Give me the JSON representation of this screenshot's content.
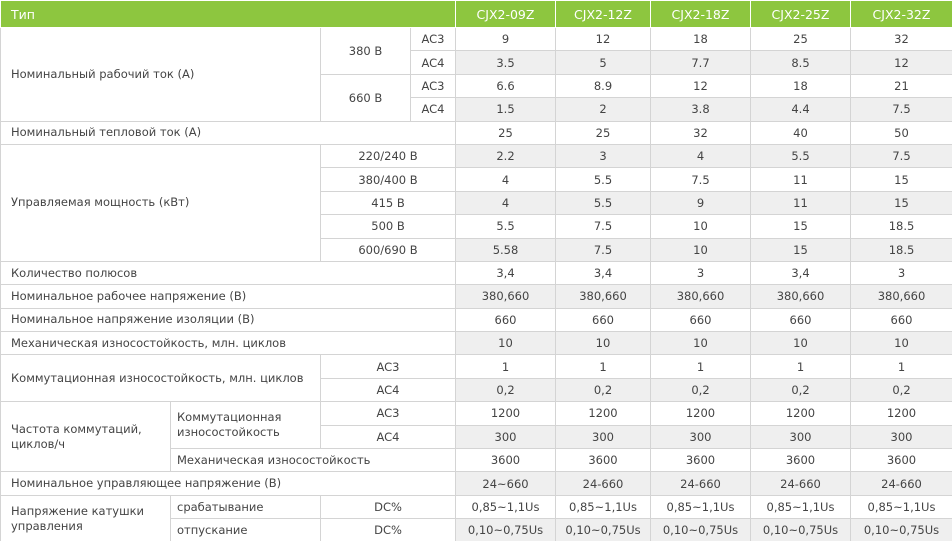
{
  "table": {
    "header": [
      "Тип",
      "CJX2-09Z",
      "CJX2-12Z",
      "CJX2-18Z",
      "CJX2-25Z",
      "CJX2-32Z"
    ],
    "rows": [
      [
        "Номинальный рабочий ток (А)",
        "380 В",
        "AC3",
        9,
        12,
        18,
        25,
        32
      ],
      [
        "AC4",
        3.5,
        5,
        7.7,
        8.5,
        12
      ],
      [
        "660 В",
        "AC3",
        6.6,
        8.9,
        12,
        18,
        21
      ],
      [
        "AC4",
        1.5,
        2,
        3.8,
        4.4,
        7.5
      ],
      [
        "Номинальный тепловой ток (А)",
        25,
        25,
        32,
        40,
        50
      ],
      [
        "Управляемая мощность (кВт)",
        "220/240 В",
        2.2,
        3,
        4,
        5.5,
        7.5
      ],
      [
        "380/400 В",
        4,
        5.5,
        7.5,
        11,
        15
      ],
      [
        "415 В",
        4,
        5.5,
        9,
        11,
        15
      ],
      [
        "500 В",
        5.5,
        7.5,
        10,
        15,
        18.5
      ],
      [
        "600/690 В",
        5.58,
        7.5,
        10,
        15,
        18.5
      ],
      [
        "Количество полюсов",
        "3,4",
        "3,4",
        3,
        "3,4",
        3
      ],
      [
        "Номинальное рабочее напряжение (В)",
        "380,660",
        "380,660",
        "380,660",
        "380,660",
        "380,660"
      ],
      [
        "Номинальное напряжение изоляции (В)",
        660,
        660,
        660,
        660,
        660
      ],
      [
        "Механическая износостойкость, млн. циклов",
        10,
        10,
        10,
        10,
        10
      ],
      [
        "Коммутационная износостойкость, млн. циклов",
        "AC3",
        1,
        1,
        1,
        1,
        1
      ],
      [
        "AC4",
        "0,2",
        "0,2",
        "0,2",
        "0,2",
        "0,2"
      ],
      [
        "Частота коммутаций, циклов/ч",
        "Коммутационная износостойкость",
        "AC3",
        1200,
        1200,
        1200,
        1200,
        1200
      ],
      [
        "AC4",
        300,
        300,
        300,
        300,
        300
      ],
      [
        "Механическая износостойкость",
        3600,
        3600,
        3600,
        3600,
        3600
      ],
      [
        "Номинальное управляющее напряжение (В)",
        "24~660",
        "24-660",
        "24-660",
        "24-660",
        "24-660"
      ],
      [
        "Напряжение катушки управления",
        "срабатывание",
        "DC%",
        "0,85~1,1Us",
        "0,85~1,1Us",
        "0,85~1,1Us",
        "0,85~1,1Us",
        "0,85~1,1Us"
      ],
      [
        "отпускание",
        "DC%",
        "0,10~0,75Us",
        "0,10~0,75Us",
        "0,10~0,75Us",
        "0,10~0,75Us",
        "0,10~0,75Us"
      ]
    ]
  }
}
